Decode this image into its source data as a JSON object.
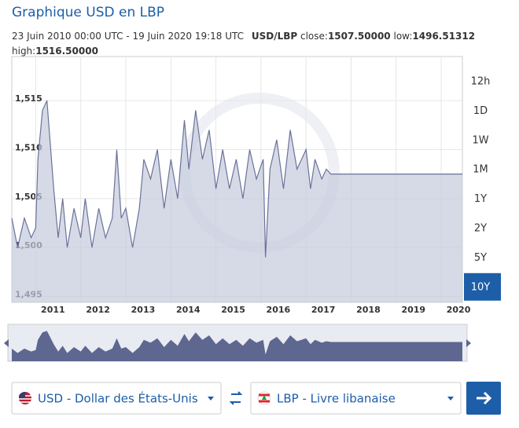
{
  "header": {
    "title": "Graphique USD en LBP"
  },
  "info": {
    "range": "23 Juin 2010 00:00 UTC - 19 Juin 2020 19:18 UTC",
    "pair": "USD/LBP",
    "close_label": "close:",
    "close": "1507.50000",
    "low_label": "low:",
    "low": "1496.51312",
    "high_label": "high:",
    "high": "1516.50000"
  },
  "chart_data": {
    "type": "area",
    "color": "#6a7299",
    "fill": "#c5cbdd",
    "x": [
      2010.47,
      2010.6,
      2010.75,
      2010.9,
      2011.0,
      2011.05,
      2011.15,
      2011.25,
      2011.3,
      2011.4,
      2011.5,
      2011.6,
      2011.7,
      2011.85,
      2012.0,
      2012.1,
      2012.25,
      2012.4,
      2012.55,
      2012.7,
      2012.8,
      2012.9,
      2013.0,
      2013.15,
      2013.3,
      2013.4,
      2013.55,
      2013.7,
      2013.85,
      2014.0,
      2014.15,
      2014.3,
      2014.4,
      2014.55,
      2014.7,
      2014.85,
      2015.0,
      2015.15,
      2015.3,
      2015.45,
      2015.6,
      2015.75,
      2015.9,
      2016.05,
      2016.1,
      2016.2,
      2016.35,
      2016.5,
      2016.65,
      2016.8,
      2017.0,
      2017.1,
      2017.2,
      2017.35,
      2017.45,
      2017.55,
      2020.47
    ],
    "values": [
      1503,
      1500,
      1503,
      1501,
      1502,
      1509,
      1514,
      1515,
      1512,
      1506,
      1501,
      1505,
      1500,
      1504,
      1501,
      1505,
      1500,
      1504,
      1501,
      1503,
      1510,
      1503,
      1504,
      1500,
      1504,
      1509,
      1507,
      1510,
      1504,
      1509,
      1505,
      1513,
      1508,
      1514,
      1509,
      1512,
      1506,
      1510,
      1506,
      1509,
      1505,
      1510,
      1507,
      1509,
      1499,
      1508,
      1511,
      1506,
      1512,
      1508,
      1510,
      1506,
      1509,
      1507,
      1508,
      1507.5,
      1507.5
    ],
    "xlim": [
      2010.47,
      2020.47
    ],
    "ylim": [
      1494.4,
      1519.5
    ],
    "xticks": [
      2011,
      2012,
      2013,
      2014,
      2015,
      2016,
      2017,
      2018,
      2019,
      2020
    ],
    "yticks": [
      {
        "value": 1495,
        "label": "1,495"
      },
      {
        "value": 1500,
        "label": "1,500"
      },
      {
        "value": 1505,
        "label": "1,505"
      },
      {
        "value": 1510,
        "label": "1,510"
      },
      {
        "value": 1515,
        "label": "1,515"
      }
    ],
    "grid": true
  },
  "periods": {
    "options": [
      "12h",
      "1D",
      "1W",
      "1M",
      "1Y",
      "2Y",
      "5Y",
      "10Y"
    ],
    "active_index": 7
  },
  "converter": {
    "from": "USD - Dollar des États-Unis",
    "to": "LBP - Livre libanaise"
  }
}
